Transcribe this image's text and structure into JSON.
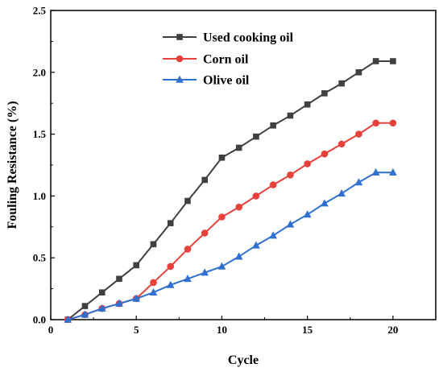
{
  "chart_data": {
    "type": "line",
    "xlabel": "Cycle",
    "ylabel": "Fouling Resistance (%)",
    "xlim": [
      0,
      22.5
    ],
    "ylim": [
      0,
      2.5
    ],
    "xticks": [
      0,
      5,
      10,
      15,
      20
    ],
    "yticks": [
      0.0,
      0.5,
      1.0,
      1.5,
      2.0,
      2.5
    ],
    "ytick_labels": [
      "0.0",
      "0.5",
      "1.0",
      "1.5",
      "2.0",
      "2.5"
    ],
    "grid": false,
    "legend_position": "top-center",
    "x": [
      1,
      2,
      3,
      4,
      5,
      6,
      7,
      8,
      9,
      10,
      11,
      12,
      13,
      14,
      15,
      16,
      17,
      18,
      19,
      20
    ],
    "series": [
      {
        "name": "Used cooking oil",
        "color": "#404040",
        "marker": "square",
        "values": [
          0.0,
          0.11,
          0.22,
          0.33,
          0.44,
          0.61,
          0.78,
          0.96,
          1.13,
          1.31,
          1.39,
          1.48,
          1.57,
          1.65,
          1.74,
          1.83,
          1.91,
          2.0,
          2.09,
          2.09
        ]
      },
      {
        "name": "Corn oil",
        "color": "#e8403a",
        "marker": "circle",
        "values": [
          0.0,
          0.04,
          0.09,
          0.13,
          0.17,
          0.3,
          0.43,
          0.57,
          0.7,
          0.83,
          0.91,
          1.0,
          1.09,
          1.17,
          1.26,
          1.34,
          1.42,
          1.5,
          1.59,
          1.59
        ]
      },
      {
        "name": "Olive oil",
        "color": "#2f6fd0",
        "marker": "triangle",
        "values": [
          0.0,
          0.04,
          0.09,
          0.13,
          0.17,
          0.22,
          0.28,
          0.33,
          0.38,
          0.43,
          0.51,
          0.6,
          0.68,
          0.77,
          0.85,
          0.94,
          1.02,
          1.11,
          1.19,
          1.19
        ]
      }
    ]
  }
}
